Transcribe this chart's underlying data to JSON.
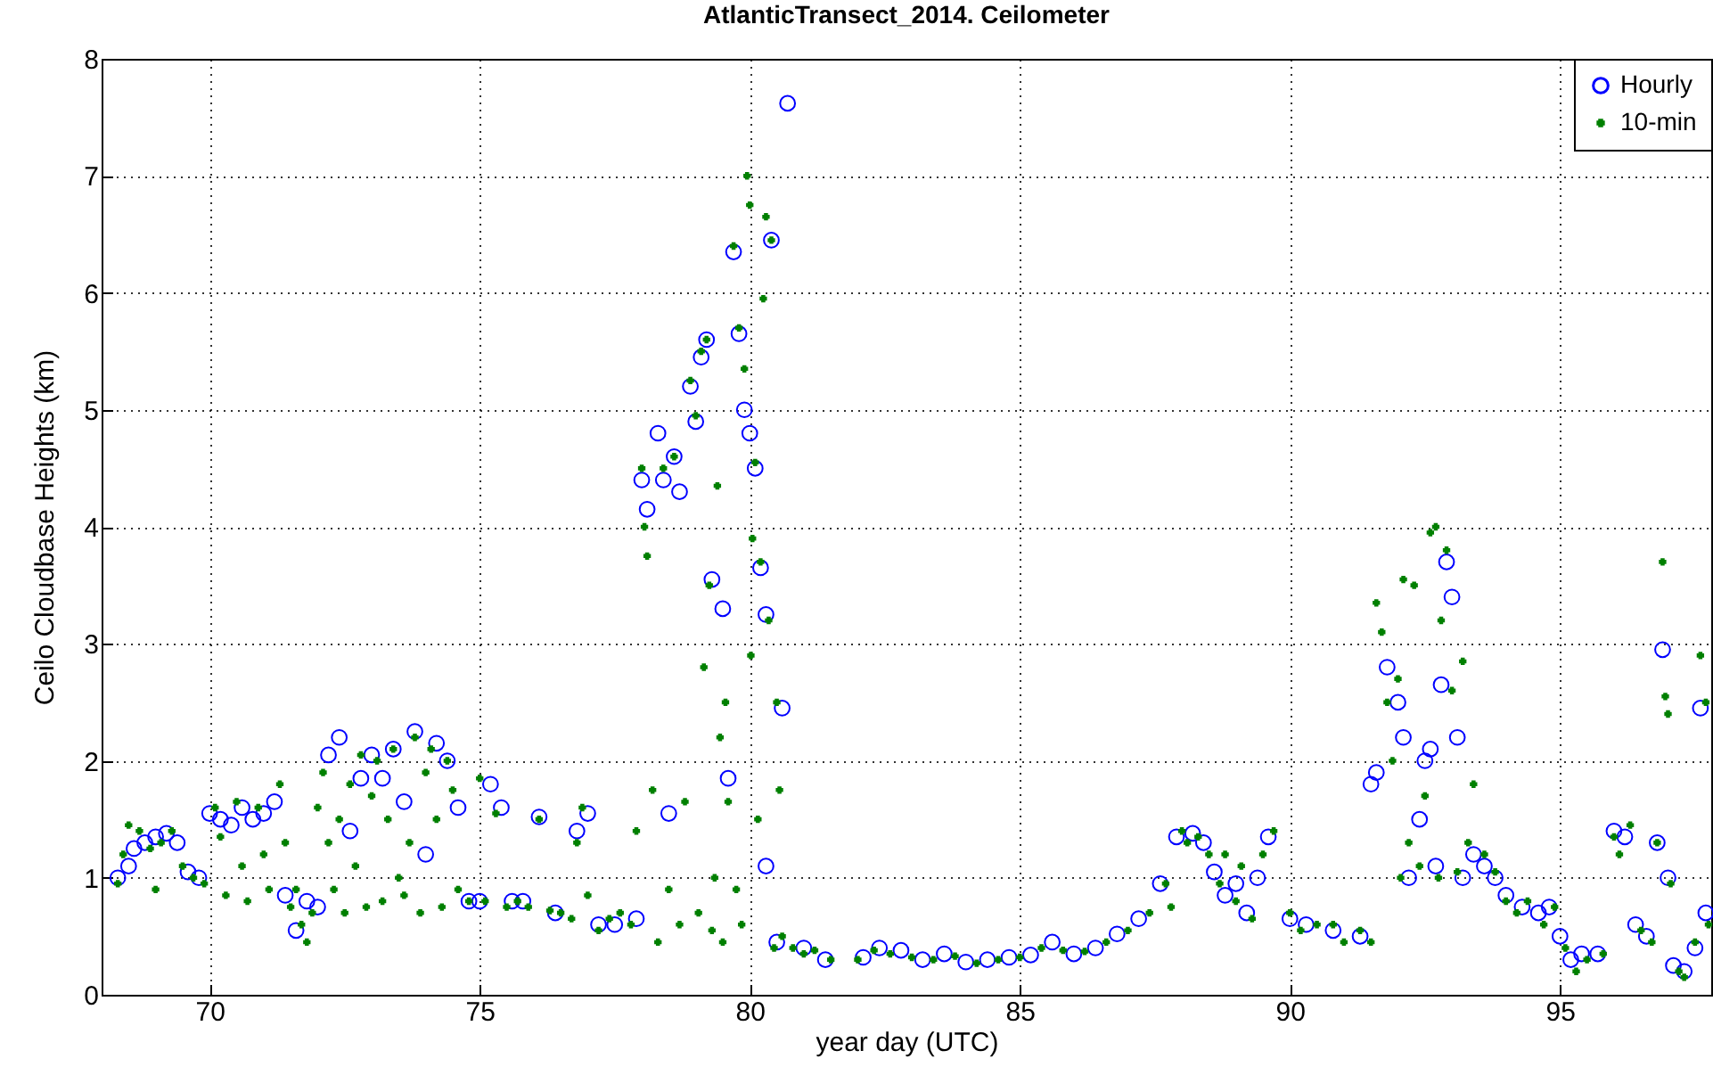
{
  "chart_data": {
    "type": "scatter",
    "title": "AtlanticTransect_2014.  Ceilometer",
    "xlabel": "year day (UTC)",
    "ylabel": "Ceilo Cloudbase Heights (km)",
    "xlim": [
      68,
      97.8
    ],
    "xticks": [
      70,
      75,
      80,
      85,
      90,
      95
    ],
    "ylim": [
      0,
      8
    ],
    "yticks": [
      0,
      1,
      2,
      3,
      4,
      5,
      6,
      7,
      8
    ],
    "grid": true,
    "legend": "top right",
    "series": [
      {
        "name": "Hourly",
        "color": "#0000ff",
        "marker": "circle",
        "x": [
          68.3,
          68.5,
          68.6,
          68.8,
          69.0,
          69.2,
          69.4,
          69.6,
          69.8,
          70.0,
          70.2,
          70.4,
          70.6,
          70.8,
          71.0,
          71.2,
          71.4,
          71.6,
          71.8,
          72.0,
          72.2,
          72.4,
          72.6,
          72.8,
          73.0,
          73.2,
          73.4,
          73.6,
          73.8,
          74.0,
          74.2,
          74.4,
          74.6,
          74.8,
          75.0,
          75.2,
          75.4,
          75.6,
          75.8,
          76.1,
          76.4,
          76.8,
          77.0,
          77.2,
          77.5,
          77.9,
          78.0,
          78.1,
          78.3,
          78.4,
          78.5,
          78.6,
          78.7,
          78.9,
          79.0,
          79.1,
          79.2,
          79.3,
          79.5,
          79.6,
          79.7,
          79.8,
          79.9,
          80.0,
          80.1,
          80.2,
          80.3,
          80.4,
          80.6,
          80.7,
          80.3,
          80.5,
          81.0,
          81.4,
          82.1,
          82.4,
          82.8,
          83.2,
          83.6,
          84.0,
          84.4,
          84.8,
          85.2,
          85.6,
          86.0,
          86.4,
          86.8,
          87.2,
          87.6,
          87.9,
          88.2,
          88.4,
          88.6,
          88.8,
          89.0,
          89.2,
          89.4,
          89.6,
          90.0,
          90.3,
          90.8,
          91.3,
          91.5,
          91.6,
          91.8,
          92.0,
          92.1,
          92.2,
          92.4,
          92.5,
          92.6,
          92.8,
          92.9,
          93.0,
          93.1,
          92.7,
          93.2,
          93.4,
          93.6,
          93.8,
          94.0,
          94.3,
          94.6,
          94.8,
          95.0,
          95.2,
          95.4,
          95.7,
          96.0,
          96.2,
          96.4,
          96.6,
          96.8,
          96.9,
          97.0,
          97.1,
          97.3,
          97.5,
          97.6,
          97.7
        ],
        "values": [
          1.0,
          1.1,
          1.25,
          1.3,
          1.35,
          1.38,
          1.3,
          1.05,
          1.0,
          1.55,
          1.5,
          1.45,
          1.6,
          1.5,
          1.55,
          1.65,
          0.85,
          0.55,
          0.8,
          0.75,
          2.05,
          2.2,
          1.4,
          1.85,
          2.05,
          1.85,
          2.1,
          1.65,
          2.25,
          1.2,
          2.15,
          2.0,
          1.6,
          0.8,
          0.8,
          1.8,
          1.6,
          0.8,
          0.8,
          1.52,
          0.7,
          1.4,
          1.55,
          0.6,
          0.6,
          0.65,
          4.4,
          4.15,
          4.8,
          4.4,
          1.55,
          4.6,
          4.3,
          5.2,
          4.9,
          5.45,
          5.6,
          3.55,
          3.3,
          1.85,
          6.35,
          5.65,
          5.0,
          4.8,
          4.5,
          3.65,
          3.25,
          6.45,
          2.45,
          7.62,
          1.1,
          0.45,
          0.4,
          0.3,
          0.32,
          0.4,
          0.38,
          0.3,
          0.35,
          0.28,
          0.3,
          0.32,
          0.34,
          0.45,
          0.35,
          0.4,
          0.52,
          0.65,
          0.95,
          1.35,
          1.38,
          1.3,
          1.05,
          0.85,
          0.95,
          0.7,
          1.0,
          1.35,
          0.65,
          0.6,
          0.55,
          0.5,
          1.8,
          1.9,
          2.8,
          2.5,
          2.2,
          1.0,
          1.5,
          2.0,
          2.1,
          2.65,
          3.7,
          3.4,
          2.2,
          1.1,
          1.0,
          1.2,
          1.1,
          1.0,
          0.85,
          0.75,
          0.7,
          0.75,
          0.5,
          0.3,
          0.35,
          0.35,
          1.4,
          1.35,
          0.6,
          0.5,
          1.3,
          2.95,
          1.0,
          0.25,
          0.2,
          0.4,
          2.45,
          0.7
        ]
      },
      {
        "name": "10-min",
        "color": "#008000",
        "marker": "cross",
        "x": [
          68.3,
          68.4,
          68.5,
          68.7,
          68.9,
          69.0,
          69.1,
          69.3,
          69.5,
          69.7,
          69.9,
          70.1,
          70.2,
          70.3,
          70.5,
          70.6,
          70.7,
          70.9,
          71.0,
          71.1,
          71.3,
          71.4,
          71.5,
          71.6,
          71.7,
          71.8,
          71.9,
          72.0,
          72.1,
          72.2,
          72.3,
          72.4,
          72.5,
          72.6,
          72.7,
          72.8,
          72.9,
          73.0,
          73.1,
          73.2,
          73.3,
          73.4,
          73.5,
          73.6,
          73.7,
          73.8,
          73.9,
          74.0,
          74.1,
          74.2,
          74.3,
          74.4,
          74.5,
          74.6,
          74.8,
          75.0,
          75.1,
          75.3,
          75.5,
          75.7,
          75.9,
          76.1,
          76.3,
          76.5,
          76.7,
          76.8,
          76.9,
          77.0,
          77.2,
          77.4,
          77.6,
          77.8,
          77.9,
          78.0,
          78.05,
          78.1,
          78.2,
          78.3,
          78.4,
          78.5,
          78.6,
          78.7,
          78.8,
          78.9,
          79.0,
          79.05,
          79.1,
          79.15,
          79.2,
          79.25,
          79.3,
          79.35,
          79.4,
          79.45,
          79.5,
          79.55,
          79.6,
          79.7,
          79.75,
          79.8,
          79.85,
          79.9,
          79.95,
          80.0,
          80.02,
          80.05,
          80.1,
          80.15,
          80.2,
          80.25,
          80.3,
          80.35,
          80.4,
          80.45,
          80.5,
          80.55,
          80.6,
          80.8,
          81.0,
          81.2,
          81.5,
          82.0,
          82.3,
          82.6,
          83.0,
          83.4,
          83.8,
          84.2,
          84.6,
          85.0,
          85.4,
          85.8,
          86.2,
          86.6,
          87.0,
          87.4,
          87.7,
          87.8,
          88.0,
          88.1,
          88.3,
          88.5,
          88.7,
          88.8,
          89.0,
          89.1,
          89.3,
          89.5,
          89.7,
          90.0,
          90.2,
          90.5,
          90.8,
          91.0,
          91.3,
          91.5,
          91.6,
          91.7,
          91.8,
          91.9,
          92.0,
          92.05,
          92.1,
          92.2,
          92.3,
          92.4,
          92.5,
          92.6,
          92.7,
          92.75,
          92.8,
          92.9,
          93.0,
          93.1,
          93.2,
          93.3,
          93.4,
          93.6,
          93.8,
          94.0,
          94.2,
          94.4,
          94.7,
          94.9,
          95.1,
          95.3,
          95.5,
          95.8,
          96.0,
          96.1,
          96.3,
          96.5,
          96.7,
          96.8,
          96.9,
          96.95,
          97.0,
          97.05,
          97.2,
          97.3,
          97.5,
          97.6,
          97.7,
          97.75
        ],
        "values": [
          0.95,
          1.2,
          1.45,
          1.4,
          1.25,
          0.9,
          1.3,
          1.4,
          1.1,
          1.0,
          0.95,
          1.6,
          1.35,
          0.85,
          1.65,
          1.1,
          0.8,
          1.6,
          1.2,
          0.9,
          1.8,
          1.3,
          0.75,
          0.9,
          0.6,
          0.45,
          0.7,
          1.6,
          1.9,
          1.3,
          0.9,
          1.5,
          0.7,
          1.8,
          1.1,
          2.05,
          0.75,
          1.7,
          2.0,
          0.8,
          1.5,
          2.1,
          1.0,
          0.85,
          1.3,
          2.2,
          0.7,
          1.9,
          2.1,
          1.5,
          0.75,
          2.0,
          1.75,
          0.9,
          0.8,
          1.85,
          0.8,
          1.55,
          0.75,
          0.8,
          0.75,
          1.5,
          0.72,
          0.7,
          0.65,
          1.3,
          1.6,
          0.85,
          0.55,
          0.65,
          0.7,
          0.6,
          1.4,
          4.5,
          4.0,
          3.75,
          1.75,
          0.45,
          4.5,
          0.9,
          4.6,
          0.6,
          1.65,
          5.25,
          4.95,
          0.7,
          5.5,
          2.8,
          5.6,
          3.5,
          0.55,
          1.0,
          4.35,
          2.2,
          0.45,
          2.5,
          1.65,
          6.4,
          0.9,
          5.7,
          0.6,
          5.35,
          7.0,
          6.75,
          2.9,
          3.9,
          4.55,
          1.5,
          3.7,
          5.95,
          6.65,
          3.2,
          6.45,
          0.4,
          2.5,
          1.75,
          0.5,
          0.4,
          0.35,
          0.38,
          0.3,
          0.3,
          0.38,
          0.35,
          0.32,
          0.3,
          0.33,
          0.27,
          0.3,
          0.32,
          0.4,
          0.38,
          0.37,
          0.45,
          0.55,
          0.7,
          0.95,
          0.75,
          1.4,
          1.3,
          1.35,
          1.2,
          0.95,
          1.2,
          0.8,
          1.1,
          0.65,
          1.2,
          1.4,
          0.7,
          0.55,
          0.6,
          0.6,
          0.45,
          0.55,
          0.45,
          3.35,
          3.1,
          2.5,
          2.0,
          2.7,
          1.0,
          3.55,
          1.3,
          3.5,
          1.1,
          1.7,
          3.95,
          4.0,
          1.0,
          3.2,
          3.8,
          2.6,
          1.05,
          2.85,
          1.3,
          1.8,
          1.2,
          1.05,
          0.8,
          0.7,
          0.8,
          0.6,
          0.75,
          0.4,
          0.2,
          0.3,
          0.35,
          1.35,
          1.2,
          1.45,
          0.55,
          0.45,
          1.3,
          3.7,
          2.55,
          2.4,
          0.95,
          0.2,
          0.15,
          0.45,
          2.9,
          2.5,
          0.6
        ]
      }
    ]
  }
}
